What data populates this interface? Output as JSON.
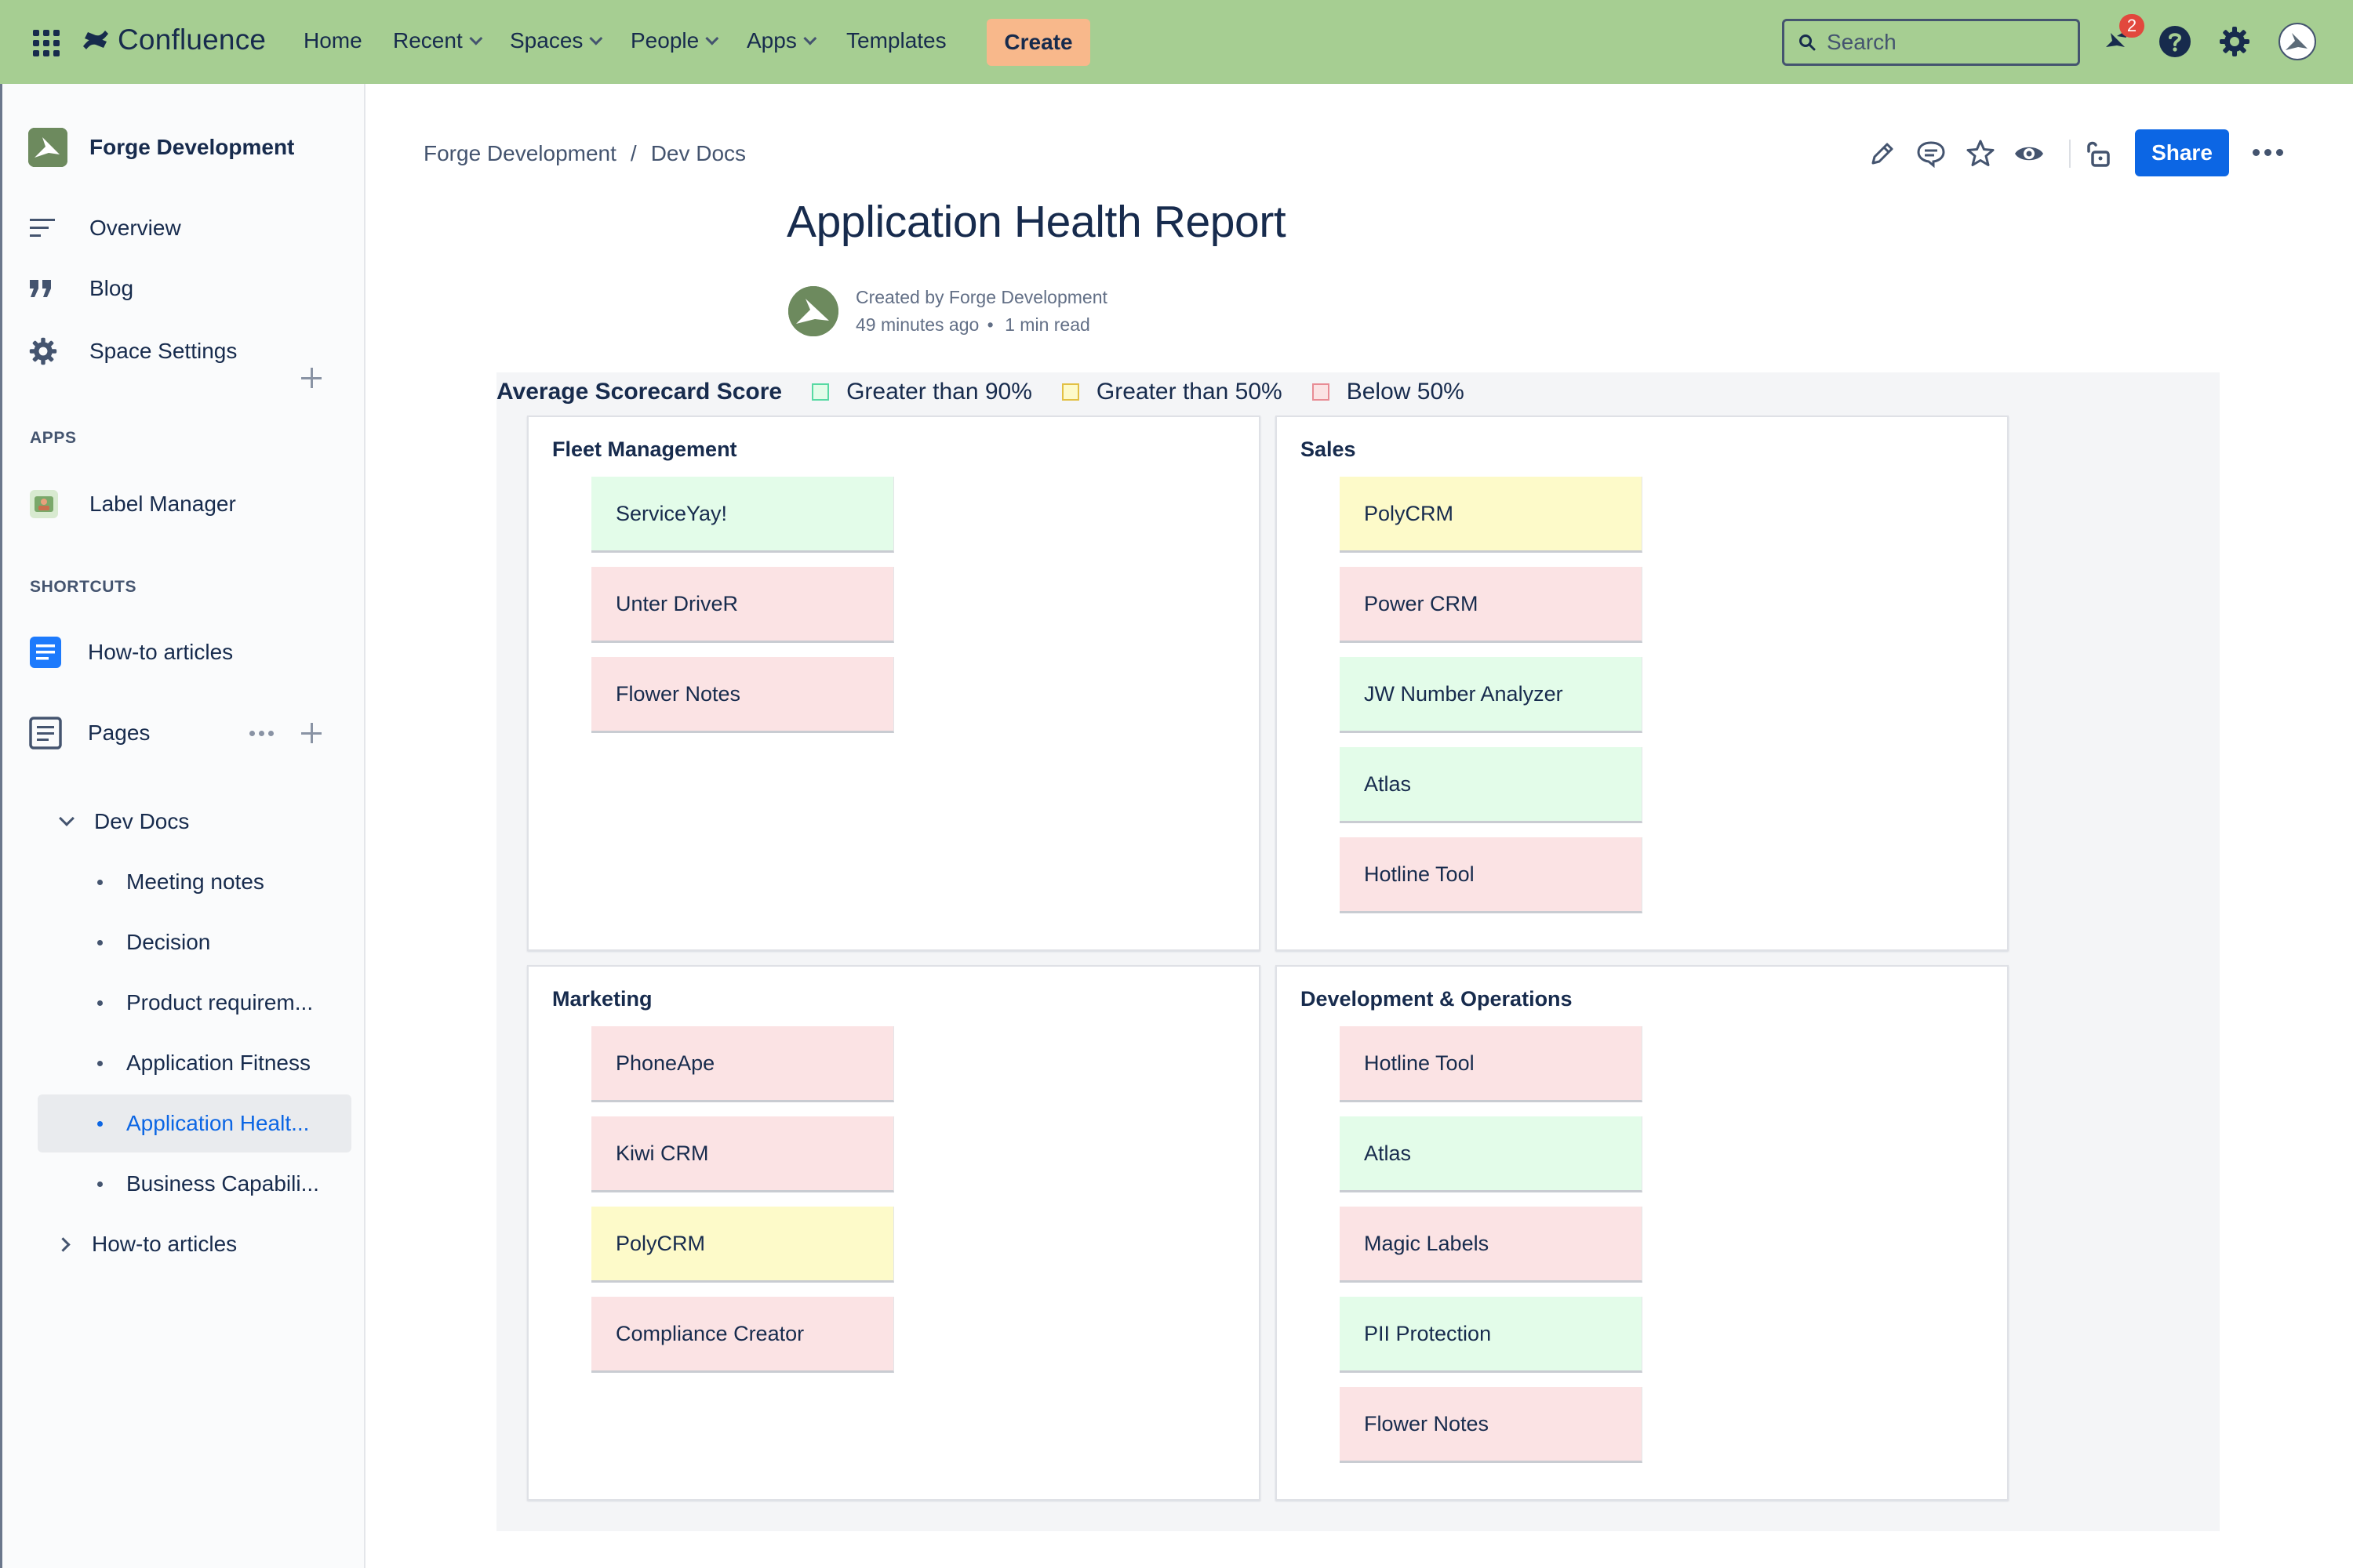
{
  "topnav": {
    "product": "Confluence",
    "items": [
      "Home",
      "Recent",
      "Spaces",
      "People",
      "Apps",
      "Templates"
    ],
    "create_label": "Create",
    "search_placeholder": "Search",
    "notification_count": "2"
  },
  "sidebar": {
    "space_name": "Forge Development",
    "items": {
      "overview": "Overview",
      "blog": "Blog",
      "space_settings": "Space Settings",
      "label_manager": "Label Manager",
      "howto_shortcut": "How-to articles",
      "pages": "Pages"
    },
    "sections": {
      "apps": "APPS",
      "shortcuts": "SHORTCUTS"
    },
    "tree": {
      "dev_docs": "Dev Docs",
      "children": [
        "Meeting notes",
        "Decision",
        "Product requirem...",
        "Application Fitness",
        "Application Healt...",
        "Business Capabili..."
      ],
      "howto": "How-to articles"
    }
  },
  "page": {
    "breadcrumb": [
      "Forge Development",
      "Dev Docs"
    ],
    "separator": "/",
    "share_label": "Share",
    "title": "Application Health Report",
    "byline_created": "Created by Forge Development",
    "byline_time": "49 minutes ago",
    "byline_dot": "•",
    "byline_read": "1 min read"
  },
  "legend": {
    "title": "Average Scorecard Score",
    "entries": [
      {
        "label": "Greater than 90%",
        "color": "#e3fce9",
        "border": "#57d9a3"
      },
      {
        "label": "Greater than 50%",
        "color": "#fdfac9",
        "border": "#e2c044"
      },
      {
        "label": "Below 50%",
        "color": "#fbe3e4",
        "border": "#e88c95"
      }
    ]
  },
  "colors": {
    "green": "#e3fce9",
    "yellow": "#fdfac9",
    "red": "#fbe3e4",
    "topnav": "#a6ce92",
    "accent": "#0c66e4",
    "create": "#f8b88b"
  },
  "panels": [
    {
      "title": "Fleet Management",
      "cards": [
        {
          "name": "ServiceYay!",
          "status": "green"
        },
        {
          "name": "Unter DriveR",
          "status": "red"
        },
        {
          "name": "Flower Notes",
          "status": "red"
        }
      ]
    },
    {
      "title": "Sales",
      "cards": [
        {
          "name": "PolyCRM",
          "status": "yellow"
        },
        {
          "name": "Power CRM",
          "status": "red"
        },
        {
          "name": "JW Number Analyzer",
          "status": "green"
        },
        {
          "name": "Atlas",
          "status": "green"
        },
        {
          "name": "Hotline Tool",
          "status": "red"
        }
      ]
    },
    {
      "title": "Marketing",
      "cards": [
        {
          "name": "PhoneApe",
          "status": "red"
        },
        {
          "name": "Kiwi CRM",
          "status": "red"
        },
        {
          "name": "PolyCRM",
          "status": "yellow"
        },
        {
          "name": "Compliance Creator",
          "status": "red"
        }
      ]
    },
    {
      "title": "Development & Operations",
      "cards": [
        {
          "name": "Hotline Tool",
          "status": "red"
        },
        {
          "name": "Atlas",
          "status": "green"
        },
        {
          "name": "Magic Labels",
          "status": "red"
        },
        {
          "name": "PII Protection",
          "status": "green"
        },
        {
          "name": "Flower Notes",
          "status": "red"
        }
      ]
    }
  ]
}
